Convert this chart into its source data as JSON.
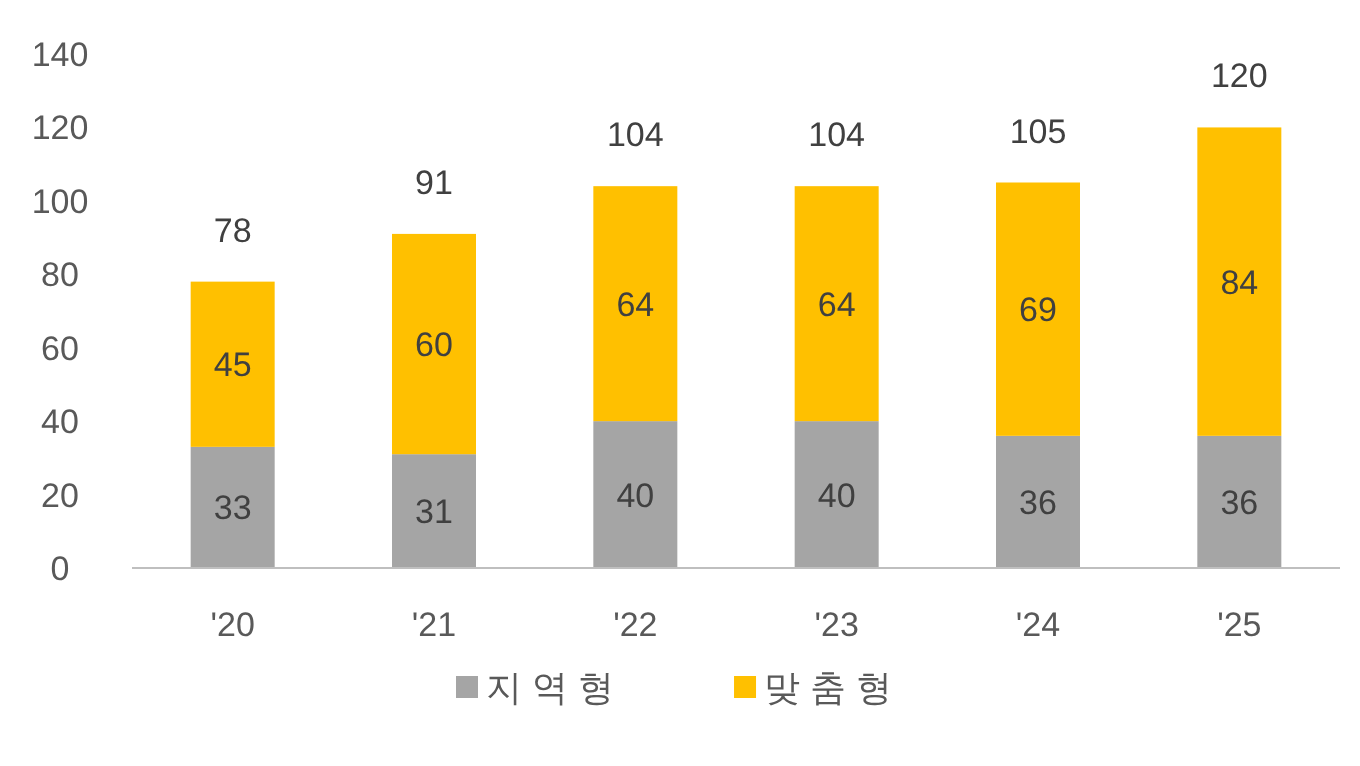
{
  "chart_data": {
    "type": "bar",
    "stacked": true,
    "categories": [
      "'20",
      "'21",
      "'22",
      "'23",
      "'24",
      "'25"
    ],
    "series": [
      {
        "name": "지 역 형",
        "color": "#a5a5a5",
        "values": [
          33,
          31,
          40,
          40,
          36,
          36
        ]
      },
      {
        "name": "맞 춤 형",
        "color": "#ffc000",
        "values": [
          45,
          60,
          64,
          64,
          69,
          84
        ]
      }
    ],
    "totals": [
      "78",
      "91",
      "104",
      "104",
      "105",
      "120"
    ],
    "ylim": [
      0,
      140
    ],
    "yticks": [
      0,
      20,
      40,
      60,
      80,
      100,
      120,
      140
    ],
    "data_labels": true,
    "legend": "bottom"
  }
}
